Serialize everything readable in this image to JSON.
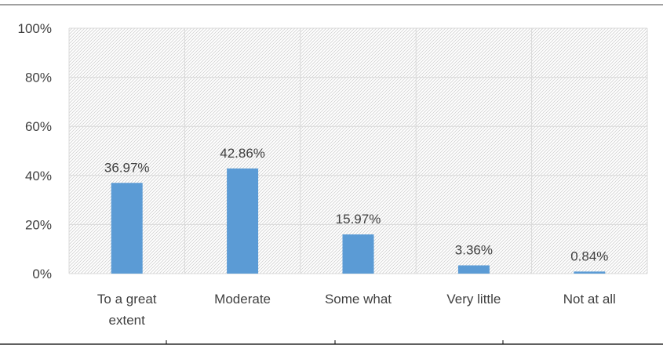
{
  "chart_data": {
    "type": "bar",
    "categories": [
      "To a great extent",
      "Moderate",
      "Some what",
      "Very little",
      "Not at all"
    ],
    "category_label_lines": [
      [
        "To a great",
        "extent"
      ],
      [
        "Moderate"
      ],
      [
        "Some what"
      ],
      [
        "Very little"
      ],
      [
        "Not at all"
      ]
    ],
    "values": [
      36.97,
      42.86,
      15.97,
      3.36,
      0.84
    ],
    "data_labels": [
      "36.97%",
      "42.86%",
      "15.97%",
      "3.36%",
      "0.84%"
    ],
    "ylim": [
      0,
      100
    ],
    "y_ticks": [
      0,
      20,
      40,
      60,
      80,
      100
    ],
    "y_tick_labels": [
      "0%",
      "20%",
      "40%",
      "60%",
      "80%",
      "100%"
    ],
    "title": "",
    "xlabel": "",
    "ylabel": "",
    "grid": true,
    "plot_background": "hatched",
    "colors": {
      "bar": "#5b9bd5",
      "grid": "#d9d9d9",
      "text": "#404040",
      "hatch": "#d0d0d0",
      "frame": "#000000"
    }
  }
}
